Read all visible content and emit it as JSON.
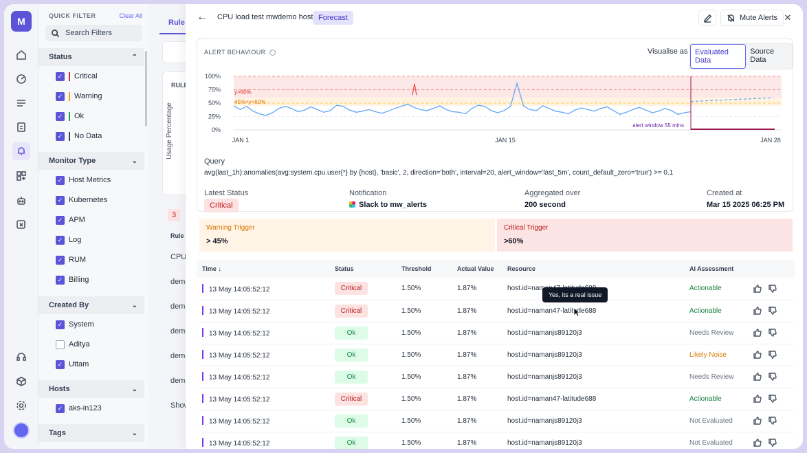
{
  "rail": {
    "logo": "M",
    "icons": [
      "home-icon",
      "dashboard-icon",
      "logs-icon",
      "reports-icon",
      "alerts-icon",
      "apps-icon",
      "bot-icon",
      "analysis-icon",
      "support-icon",
      "package-icon",
      "settings-icon"
    ]
  },
  "filter": {
    "title": "QUICK FILTER",
    "clear": "Clear All",
    "search_placeholder": "Search Filters",
    "sections": {
      "status": {
        "label": "Status",
        "items": [
          {
            "label": "Critical",
            "checked": true,
            "color": "#dc2626"
          },
          {
            "label": "Warning",
            "checked": true,
            "color": "#f59e0b"
          },
          {
            "label": "Ok",
            "checked": true,
            "color": "#16a34a"
          },
          {
            "label": "No Data",
            "checked": true,
            "color": "#374151"
          }
        ]
      },
      "monitor_type": {
        "label": "Monitor Type",
        "items": [
          {
            "label": "Host Metrics",
            "checked": true
          },
          {
            "label": "Kubernetes",
            "checked": true
          },
          {
            "label": "APM",
            "checked": true
          },
          {
            "label": "Log",
            "checked": true
          },
          {
            "label": "RUM",
            "checked": true
          },
          {
            "label": "Billing",
            "checked": true
          }
        ]
      },
      "created_by": {
        "label": "Created By",
        "items": [
          {
            "label": "System",
            "checked": true
          },
          {
            "label": "Aditya",
            "checked": false
          },
          {
            "label": "Uttam",
            "checked": true
          }
        ]
      },
      "hosts": {
        "label": "Hosts",
        "items": [
          {
            "label": "aks-in123",
            "checked": true
          }
        ]
      },
      "tags": {
        "label": "Tags"
      }
    }
  },
  "background": {
    "tab": "Rule",
    "rule_label": "RULE",
    "usage_label": "Usage Percentage",
    "count": "3",
    "col": "Rule N",
    "rows": [
      "CPU",
      "demo",
      "demo",
      "demo",
      "demo",
      "demo"
    ],
    "show": "Show"
  },
  "panel": {
    "title": "CPU load test mwdemo host",
    "badge": "Forecast",
    "mute": "Mute Alerts",
    "alert_behaviour": "ALERT BEHAVIOUR",
    "visualise_as": "Visualise as",
    "toggle_on": "Evaluated Data",
    "toggle_off": "Source Data",
    "query_label": "Query",
    "query": "avg(last_1h):anomalies(avg:system.cpu.user{*} by {host}, 'basic', 2, direction='both', interval=20, alert_window='last_5m', count_default_zero='true') >= 0.1",
    "latest_status_label": "Latest Status",
    "latest_status": "Critical",
    "notification_label": "Notification",
    "notification": "Slack to mw_alerts",
    "aggregated_label": "Aggregated over",
    "aggregated": "200 second",
    "created_label": "Created at",
    "created": "Mar 15 2025 06:25 PM",
    "warning_label": "Warning Trigger",
    "warning_value": "> 45%",
    "critical_label": "Critical Trigger",
    "critical_value": ">60%",
    "tooltip": "Yes, its a real issue"
  },
  "chart_data": {
    "type": "line",
    "y_ticks": [
      "100%",
      "75%",
      "50%",
      "25%",
      "0%"
    ],
    "x_ticks": [
      "JAN 1",
      "JAN 15",
      "JAN 28"
    ],
    "ylim": [
      0,
      100
    ],
    "annotations": [
      "y>60%",
      "45%<y<60%",
      "alert window 55 mins"
    ],
    "colors": {
      "line": "#60a5fa",
      "critical_band": "#fde8e8",
      "warning_band": "#fff3e0",
      "alert_window": "#9d174d"
    },
    "series": [
      {
        "values": [
          45,
          38,
          44,
          35,
          30,
          27,
          32,
          40,
          44,
          40,
          34,
          37,
          43,
          38,
          33,
          36,
          46,
          44,
          37,
          33,
          35,
          38,
          34,
          31,
          35,
          40,
          44,
          48,
          42,
          38,
          36,
          40,
          45,
          38,
          34,
          33,
          30,
          40,
          46,
          44,
          36,
          32,
          36,
          44,
          87,
          45,
          38,
          36,
          45,
          40,
          35,
          33,
          30,
          37,
          41,
          38,
          35,
          40,
          43,
          36,
          29,
          33,
          38,
          42,
          37,
          32,
          35,
          40,
          36,
          29,
          32,
          34
        ]
      },
      {
        "name": "",
        "values": [
          60,
          80
        ],
        "forecast": true
      }
    ]
  },
  "table": {
    "headers": [
      "Time",
      "Status",
      "Threshold",
      "Actual Value",
      "Resource",
      "AI Assessment"
    ],
    "rows": [
      {
        "time": "13 May 14:05:52:12",
        "status": "Critical",
        "threshold": "1.50%",
        "actual": "1.87%",
        "resource": "host.id=naman47-latitude688",
        "ai": "Actionable"
      },
      {
        "time": "13 May 14:05:52:12",
        "status": "Critical",
        "threshold": "1.50%",
        "actual": "1.87%",
        "resource": "host.id=naman47-latitude688",
        "ai": "Actionable"
      },
      {
        "time": "13 May 14:05:52:12",
        "status": "Ok",
        "threshold": "1.50%",
        "actual": "1.87%",
        "resource": "host.id=namanjs89120j3",
        "ai": "Needs Review"
      },
      {
        "time": "13 May 14:05:52:12",
        "status": "Ok",
        "threshold": "1.50%",
        "actual": "1.87%",
        "resource": "host.id=namanjs89120j3",
        "ai": "Likely Noise"
      },
      {
        "time": "13 May 14:05:52:12",
        "status": "Ok",
        "threshold": "1.50%",
        "actual": "1.87%",
        "resource": "host.id=namanjs89120j3",
        "ai": "Needs Review"
      },
      {
        "time": "13 May 14:05:52:12",
        "status": "Critical",
        "threshold": "1.50%",
        "actual": "1.87%",
        "resource": "host.id=naman47-latitude688",
        "ai": "Actionable"
      },
      {
        "time": "13 May 14:05:52:12",
        "status": "Ok",
        "threshold": "1.50%",
        "actual": "1.87%",
        "resource": "host.id=namanjs89120j3",
        "ai": "Not Evaluated"
      },
      {
        "time": "13 May 14:05:52:12",
        "status": "Ok",
        "threshold": "1.50%",
        "actual": "1.87%",
        "resource": "host.id=namanjs89120j3",
        "ai": "Not Evaluated"
      }
    ]
  }
}
